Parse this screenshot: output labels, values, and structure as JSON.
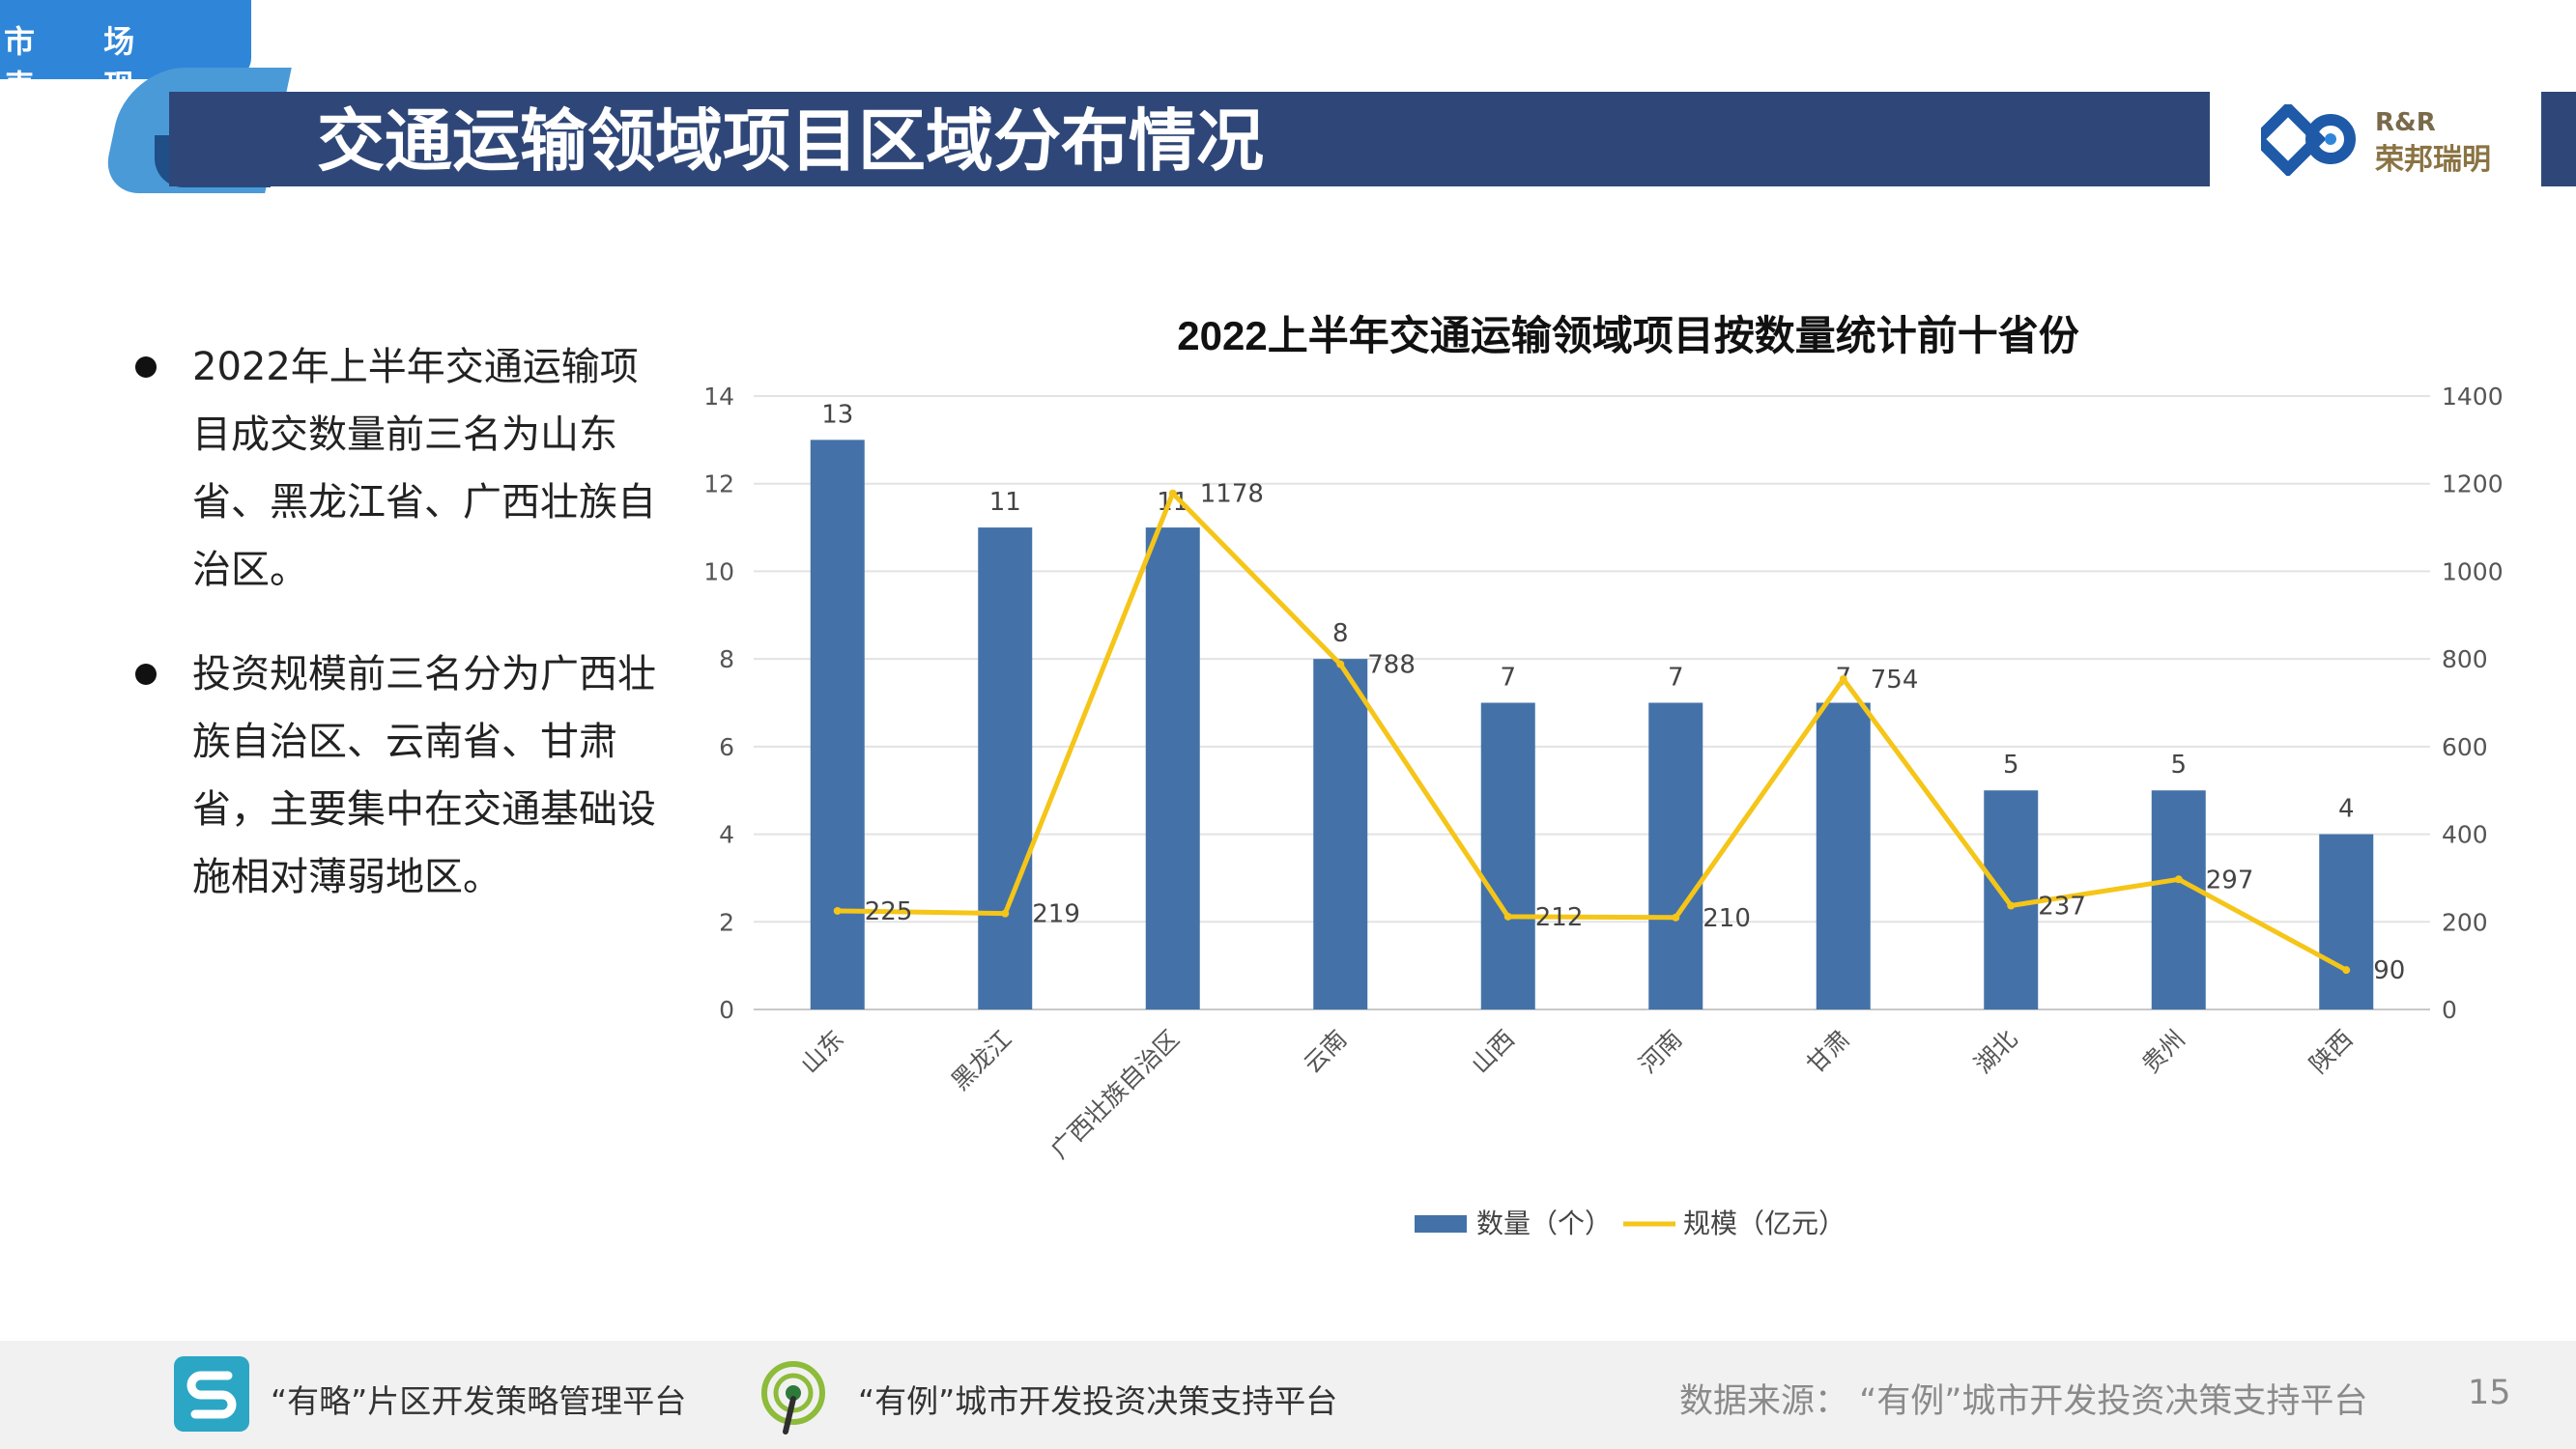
{
  "header": {
    "section_tab": "市 场 表 现",
    "title": "交通运输领域项目区域分布情况"
  },
  "logo": {
    "en": "R&R",
    "cn": "荣邦瑞明"
  },
  "bullets": [
    "2022年上半年交通运输项目成交数量前三名为山东省、黑龙江省、广西壮族自治区。",
    "投资规模前三名分为广西壮族自治区、云南省、甘肃省，主要集中在交通基础设施相对薄弱地区。"
  ],
  "chart_data": {
    "type": "bar",
    "title": "2022上半年交通运输领域项目按数量统计前十省份",
    "categories": [
      "山东",
      "黑龙江",
      "广西壮族自治区",
      "云南",
      "山西",
      "河南",
      "甘肃",
      "湖北",
      "贵州",
      "陕西"
    ],
    "series": [
      {
        "name": "数量（个）",
        "type": "bar",
        "axis": "left",
        "color": "#4472a8",
        "values": [
          13,
          11,
          11,
          8,
          7,
          7,
          7,
          5,
          5,
          4
        ]
      },
      {
        "name": "规模（亿元）",
        "type": "line",
        "axis": "right",
        "color": "#f5c518",
        "values": [
          225,
          219,
          1178,
          788,
          212,
          210,
          754,
          237,
          297,
          90
        ]
      }
    ],
    "y_left": {
      "min": 0,
      "max": 14,
      "ticks": [
        0,
        2,
        4,
        6,
        8,
        10,
        12,
        14
      ]
    },
    "y_right": {
      "min": 0,
      "max": 1400,
      "ticks": [
        0,
        200,
        400,
        600,
        800,
        1000,
        1200,
        1400
      ]
    },
    "grid": true,
    "legend_position": "bottom"
  },
  "footer": {
    "platform1": "“有略”片区开发策略管理平台",
    "platform2": "“有例”城市开发投资决策支持平台",
    "source": "数据来源：  “有例”城市开发投资决策支持平台",
    "page_number": "15"
  },
  "colors": {
    "banner": "#2f4778",
    "accent_blue": "#2f86d8",
    "bar": "#4472a8",
    "line": "#f5c518"
  }
}
